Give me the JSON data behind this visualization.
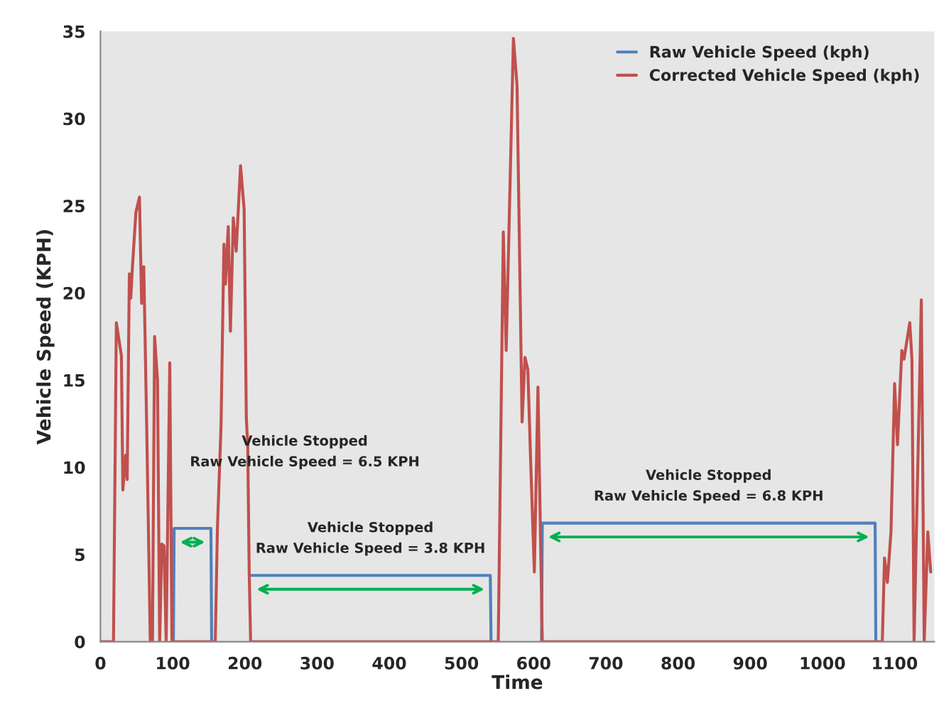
{
  "chart_data": {
    "type": "line",
    "xlabel": "Time",
    "ylabel": "Vehicle Speed (KPH)",
    "xlim": [
      0,
      1155
    ],
    "xticks": [
      0,
      100,
      200,
      300,
      400,
      500,
      600,
      700,
      800,
      900,
      1000,
      1100
    ],
    "ylim": [
      0,
      35
    ],
    "yticks": [
      0,
      5,
      10,
      15,
      20,
      25,
      30,
      35
    ],
    "grid": false,
    "legend": "top right",
    "series": [
      {
        "name": "Raw Vehicle Speed (kph)",
        "color": "#4f81bd",
        "x": [
          101,
          102,
          153,
          154,
          null,
          208,
          540,
          541,
          null,
          611,
          612,
          1073,
          1074
        ],
        "values": [
          0,
          6.5,
          6.5,
          0,
          null,
          3.8,
          3.8,
          0,
          null,
          0,
          6.8,
          6.8,
          0
        ]
      },
      {
        "name": "Corrected Vehicle Speed (kph)",
        "color": "#c0504d",
        "x": [
          0,
          18,
          22,
          29,
          31,
          35,
          37,
          40,
          42,
          44,
          49,
          54,
          57,
          60,
          64,
          69,
          72,
          75,
          79,
          82,
          85,
          88,
          91,
          96,
          99,
          159,
          162,
          167,
          171,
          173,
          177,
          180,
          184,
          188,
          194,
          199,
          202,
          204,
          206,
          208,
          551,
          558,
          562,
          572,
          577,
          584,
          588,
          592,
          596,
          601,
          606,
          612,
          1083,
          1086,
          1090,
          1095,
          1100,
          1104,
          1110,
          1113,
          1121,
          1124,
          1127,
          1137,
          1141,
          1146,
          1150
        ],
        "values": [
          0,
          0,
          18.3,
          16.4,
          8.7,
          10.7,
          9.3,
          21.1,
          19.7,
          21.3,
          24.6,
          25.5,
          19.4,
          21.5,
          12.4,
          0,
          0,
          17.5,
          15,
          0,
          5.6,
          5.5,
          0,
          16,
          0,
          0,
          6.5,
          12.4,
          22.8,
          20.5,
          23.8,
          17.8,
          24.3,
          22.4,
          27.3,
          24.8,
          12.9,
          11.2,
          4,
          0,
          0,
          23.5,
          16.7,
          34.6,
          31.9,
          12.6,
          16.3,
          15.6,
          10.2,
          4.0,
          14.6,
          0,
          0,
          4.8,
          3.4,
          6.3,
          14.8,
          11.3,
          16.7,
          16.2,
          18.3,
          16.2,
          0,
          19.6,
          0,
          6.3,
          4
        ]
      }
    ],
    "annotations": [
      "Vehicle Stopped\nRaw Vehicle Speed = 6.5 KPH",
      "Vehicle Stopped\nRaw Vehicle Speed = 3.8 KPH",
      "Vehicle Stopped\nRaw Vehicle Speed = 6.8 KPH"
    ]
  }
}
